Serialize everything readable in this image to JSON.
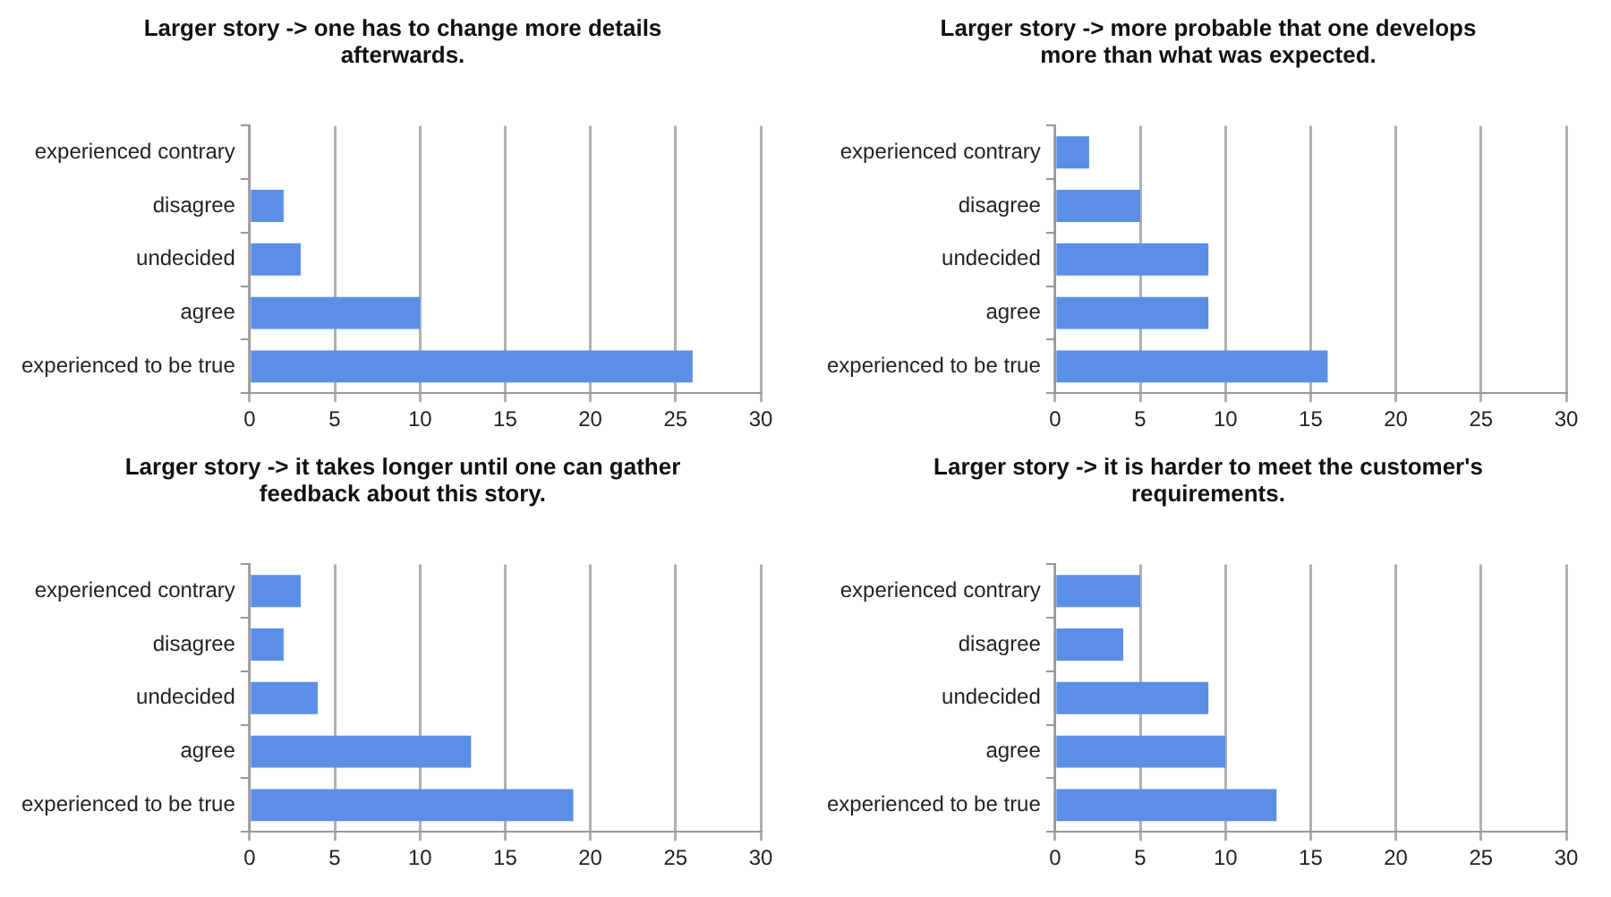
{
  "chart_data": [
    {
      "type": "bar",
      "orientation": "horizontal",
      "title": "Larger story -> one has to change more details afterwards.",
      "categories": [
        "experienced contrary",
        "disagree",
        "undecided",
        "agree",
        "experienced to be true"
      ],
      "values": [
        0,
        2,
        3,
        10,
        26
      ],
      "color": "#5b8ee6",
      "xlim": [
        0,
        30
      ],
      "xticks": [
        0,
        5,
        10,
        15,
        20,
        25,
        30
      ],
      "grid": "x"
    },
    {
      "type": "bar",
      "orientation": "horizontal",
      "title": "Larger story -> more probable that one develops more than what was expected.",
      "categories": [
        "experienced contrary",
        "disagree",
        "undecided",
        "agree",
        "experienced to be true"
      ],
      "values": [
        2,
        5,
        9,
        9,
        16
      ],
      "color": "#5b8ee6",
      "xlim": [
        0,
        30
      ],
      "xticks": [
        0,
        5,
        10,
        15,
        20,
        25,
        30
      ],
      "grid": "x"
    },
    {
      "type": "bar",
      "orientation": "horizontal",
      "title": "Larger story -> it takes longer until one can gather feedback about this story.",
      "categories": [
        "experienced contrary",
        "disagree",
        "undecided",
        "agree",
        "experienced to be true"
      ],
      "values": [
        3,
        2,
        4,
        13,
        19
      ],
      "color": "#5b8ee6",
      "xlim": [
        0,
        30
      ],
      "xticks": [
        0,
        5,
        10,
        15,
        20,
        25,
        30
      ],
      "grid": "x"
    },
    {
      "type": "bar",
      "orientation": "horizontal",
      "title": "Larger story -> it is harder to meet the customer's requirements.",
      "categories": [
        "experienced contrary",
        "disagree",
        "undecided",
        "agree",
        "experienced to be true"
      ],
      "values": [
        5,
        4,
        9,
        10,
        13
      ],
      "color": "#5b8ee6",
      "xlim": [
        0,
        30
      ],
      "xticks": [
        0,
        5,
        10,
        15,
        20,
        25,
        30
      ],
      "grid": "x"
    }
  ]
}
